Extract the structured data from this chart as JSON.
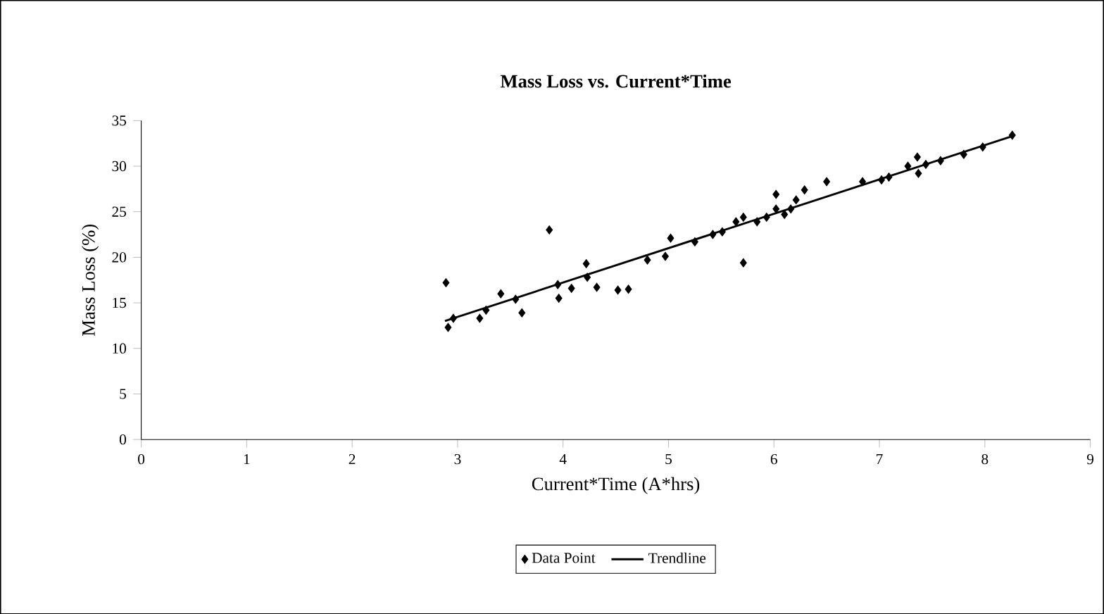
{
  "chart_data": {
    "type": "scatter",
    "title": "Mass Loss vs. Current*Time",
    "xlabel": "Current*Time (A*hrs)",
    "ylabel": "Mass Loss (%)",
    "xlim": [
      0,
      9
    ],
    "xticks": [
      0,
      1,
      2,
      3,
      4,
      5,
      6,
      7,
      8,
      9
    ],
    "ylim": [
      0,
      35
    ],
    "yticks": [
      0,
      5,
      10,
      15,
      20,
      25,
      30,
      35
    ],
    "legend": "bottom",
    "grid": false,
    "series": [
      {
        "name": "Data Point",
        "marker": "diamond",
        "color": "#000000",
        "x": [
          2.89,
          2.91,
          2.96,
          3.21,
          3.27,
          3.41,
          3.55,
          3.61,
          3.87,
          3.95,
          3.96,
          4.08,
          4.22,
          4.23,
          4.32,
          4.52,
          4.62,
          4.8,
          4.97,
          5.02,
          5.25,
          5.42,
          5.51,
          5.64,
          5.71,
          5.71,
          5.84,
          5.93,
          6.02,
          6.02,
          6.1,
          6.16,
          6.21,
          6.29,
          6.5,
          6.84,
          7.02,
          7.09,
          7.27,
          7.36,
          7.37,
          7.44,
          7.58,
          7.8,
          7.98,
          8.26
        ],
        "values": [
          17.2,
          12.3,
          13.3,
          13.3,
          14.2,
          16.0,
          15.4,
          13.9,
          23.0,
          17.0,
          15.5,
          16.6,
          19.3,
          17.8,
          16.7,
          16.4,
          16.5,
          19.7,
          20.1,
          22.1,
          21.7,
          22.5,
          22.8,
          23.9,
          24.4,
          19.4,
          23.9,
          24.4,
          26.9,
          25.3,
          24.7,
          25.3,
          26.3,
          27.4,
          28.3,
          28.3,
          28.5,
          28.8,
          30.0,
          31.0,
          29.2,
          30.2,
          30.6,
          31.3,
          32.1,
          33.4
        ]
      },
      {
        "name": "Trendline",
        "type": "line",
        "marker": "none",
        "color": "#000000",
        "x": [
          2.88,
          8.26
        ],
        "values": [
          13.0,
          33.3
        ]
      }
    ]
  }
}
